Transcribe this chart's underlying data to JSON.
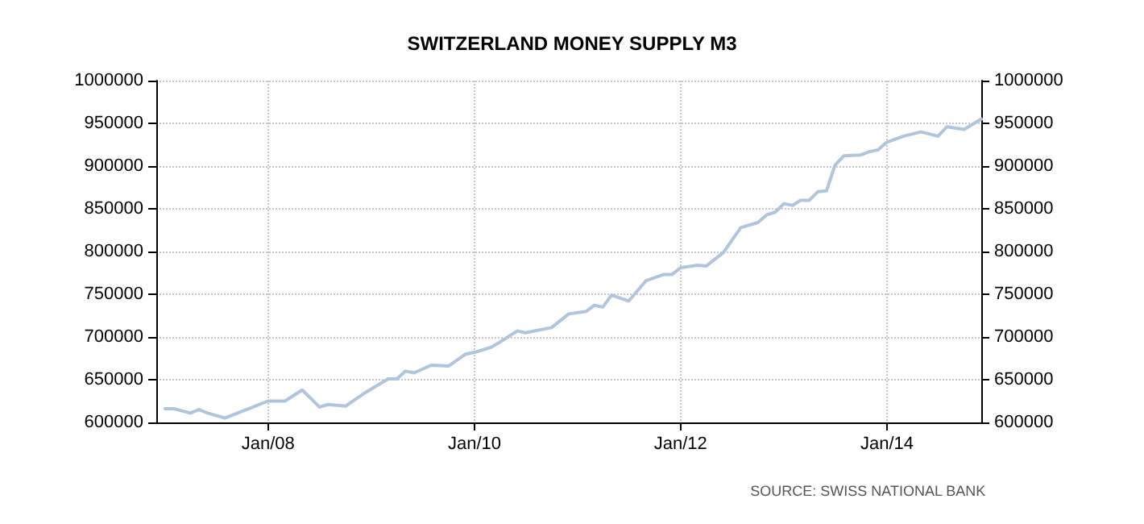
{
  "chart_data": {
    "type": "line",
    "title": "SWITZERLAND MONEY SUPPLY M3",
    "annotations": [
      "SOURCE: SWISS NATIONAL BANK"
    ],
    "x": [
      "2007-01",
      "2007-02",
      "2007-04",
      "2007-05",
      "2007-06",
      "2007-08",
      "2007-10",
      "2008-01",
      "2008-03",
      "2008-05",
      "2008-07",
      "2008-08",
      "2008-10",
      "2008-12",
      "2009-03",
      "2009-04",
      "2009-05",
      "2009-06",
      "2009-08",
      "2009-10",
      "2009-12",
      "2010-01",
      "2010-03",
      "2010-04",
      "2010-06",
      "2010-07",
      "2010-10",
      "2010-12",
      "2011-02",
      "2011-03",
      "2011-04",
      "2011-05",
      "2011-07",
      "2011-09",
      "2011-11",
      "2011-12",
      "2012-01",
      "2012-03",
      "2012-04",
      "2012-06",
      "2012-08",
      "2012-10",
      "2012-11",
      "2012-12",
      "2013-01",
      "2013-02",
      "2013-03",
      "2013-04",
      "2013-05",
      "2013-06",
      "2013-07",
      "2013-08",
      "2013-10",
      "2013-11",
      "2013-12",
      "2014-01",
      "2014-03",
      "2014-05",
      "2014-07",
      "2014-08",
      "2014-10",
      "2014-12"
    ],
    "series": [
      {
        "color": "#b0c4de",
        "values": [
          616000,
          616000,
          611000,
          615000,
          611000,
          605000,
          613000,
          625000,
          625000,
          638000,
          618000,
          621000,
          619000,
          633000,
          651000,
          651000,
          660000,
          658000,
          667000,
          666000,
          680000,
          682000,
          688000,
          694000,
          707000,
          705000,
          711000,
          727000,
          730000,
          737000,
          735000,
          749000,
          742000,
          766000,
          773000,
          773000,
          781000,
          784000,
          783000,
          799000,
          828000,
          834000,
          843000,
          846000,
          856000,
          854000,
          860000,
          860000,
          870000,
          871000,
          901000,
          912000,
          913000,
          917000,
          919000,
          928000,
          935000,
          940000,
          935000,
          946000,
          943000,
          955000
        ]
      }
    ],
    "xlim": [
      "2006-12",
      "2014-12"
    ],
    "xticks": [
      {
        "value": "2008-01",
        "label": "Jan/08"
      },
      {
        "value": "2010-01",
        "label": "Jan/10"
      },
      {
        "value": "2012-01",
        "label": "Jan/12"
      },
      {
        "value": "2014-01",
        "label": "Jan/14"
      }
    ],
    "ylim": [
      600000,
      1000000
    ],
    "yticks": [
      600000,
      650000,
      700000,
      750000,
      800000,
      850000,
      900000,
      950000,
      1000000
    ],
    "y2lim": [
      600000,
      1000000
    ],
    "y2ticks": [
      600000,
      650000,
      700000,
      750000,
      800000,
      850000,
      900000,
      950000,
      1000000
    ],
    "grid": true,
    "marker": "none",
    "line_style": "solid"
  }
}
